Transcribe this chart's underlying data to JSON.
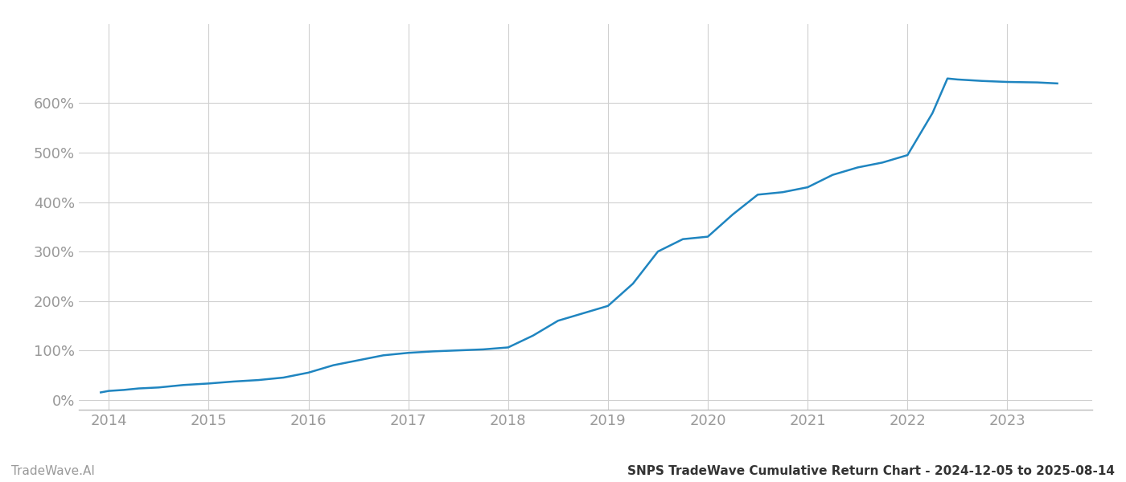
{
  "title": "SNPS TradeWave Cumulative Return Chart - 2024-12-05 to 2025-08-14",
  "watermark": "TradeWave.AI",
  "line_color": "#1f85c0",
  "line_width": 1.8,
  "background_color": "#ffffff",
  "grid_color": "#d0d0d0",
  "x_years": [
    2013.92,
    2014.0,
    2014.15,
    2014.3,
    2014.5,
    2014.75,
    2015.0,
    2015.25,
    2015.5,
    2015.75,
    2016.0,
    2016.25,
    2016.5,
    2016.75,
    2017.0,
    2017.25,
    2017.5,
    2017.75,
    2018.0,
    2018.25,
    2018.5,
    2018.75,
    2019.0,
    2019.25,
    2019.5,
    2019.75,
    2020.0,
    2020.25,
    2020.5,
    2020.75,
    2021.0,
    2021.25,
    2021.5,
    2021.75,
    2022.0,
    2022.25,
    2022.4,
    2022.5,
    2022.75,
    2023.0,
    2023.3,
    2023.5
  ],
  "y_values": [
    15,
    18,
    20,
    23,
    25,
    30,
    33,
    37,
    40,
    45,
    55,
    70,
    80,
    90,
    95,
    98,
    100,
    102,
    106,
    130,
    160,
    175,
    190,
    235,
    300,
    325,
    330,
    375,
    415,
    420,
    430,
    455,
    470,
    480,
    495,
    580,
    650,
    648,
    645,
    643,
    642,
    640
  ],
  "yticks": [
    0,
    100,
    200,
    300,
    400,
    500,
    600
  ],
  "ytick_labels": [
    "0%",
    "100%",
    "200%",
    "300%",
    "400%",
    "500%",
    "600%"
  ],
  "xtick_years": [
    2014,
    2015,
    2016,
    2017,
    2018,
    2019,
    2020,
    2021,
    2022,
    2023
  ],
  "xlim": [
    2013.7,
    2023.85
  ],
  "ylim": [
    -20,
    760
  ],
  "title_fontsize": 11,
  "watermark_fontsize": 11,
  "tick_fontsize": 13,
  "tick_color": "#999999",
  "spine_color": "#bbbbbb"
}
